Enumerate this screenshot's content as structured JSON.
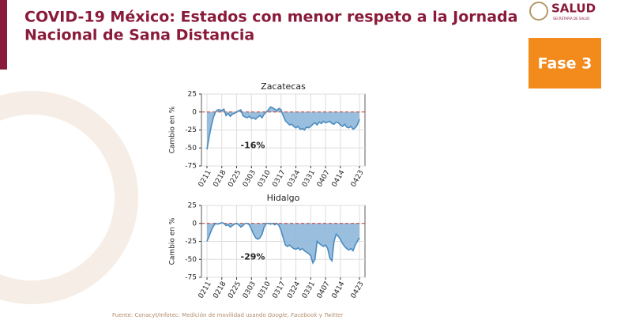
{
  "header": {
    "title_lines": [
      "COVID-19 México: Estados con menor respeto a la Jornada",
      "Nacional de Sana Distancia"
    ],
    "logo": "SALUD",
    "logo_sub": "SECRETARÍA DE SALUD",
    "badge": "Fase 3"
  },
  "footer": {
    "parts": [
      "Fuente: Conacyt/Infotec: Medición de movilidad usando ",
      "Google",
      ", ",
      "Facebook",
      " y ",
      "Twitter"
    ]
  },
  "chart_data": [
    {
      "type": "area",
      "title": "Zacatecas",
      "y_label": "Cambio en %",
      "annotation": "-16%",
      "color": "#4a8bbf",
      "fill": "#8fb8da",
      "x": [
        "0211",
        "0212",
        "0213",
        "0214",
        "0215",
        "0216",
        "0217",
        "0218",
        "0219",
        "0220",
        "0221",
        "0222",
        "0223",
        "0224",
        "0225",
        "0226",
        "0227",
        "0228",
        "0229",
        "0301",
        "0302",
        "0303",
        "0304",
        "0305",
        "0306",
        "0307",
        "0308",
        "0309",
        "0310",
        "0311",
        "0312",
        "0313",
        "0314",
        "0315",
        "0316",
        "0317",
        "0318",
        "0319",
        "0320",
        "0321",
        "0322",
        "0323",
        "0324",
        "0325",
        "0326",
        "0327",
        "0328",
        "0329",
        "0330",
        "0331",
        "0401",
        "0402",
        "0403",
        "0404",
        "0405",
        "0406",
        "0407",
        "0408",
        "0409",
        "0410",
        "0411",
        "0412",
        "0413",
        "0414",
        "0415",
        "0416",
        "0417",
        "0418",
        "0419",
        "0420",
        "0421",
        "0422",
        "0423"
      ],
      "values": [
        -52,
        -35,
        -20,
        -8,
        0,
        3,
        3,
        2,
        4,
        -5,
        -2,
        -6,
        -3,
        -2,
        0,
        2,
        3,
        -5,
        -7,
        -8,
        -6,
        -9,
        -8,
        -10,
        -7,
        -5,
        -8,
        -3,
        0,
        3,
        7,
        6,
        4,
        2,
        5,
        3,
        -5,
        -12,
        -15,
        -18,
        -17,
        -20,
        -22,
        -20,
        -24,
        -23,
        -25,
        -21,
        -22,
        -20,
        -17,
        -15,
        -18,
        -14,
        -16,
        -13,
        -15,
        -14,
        -13,
        -16,
        -17,
        -14,
        -15,
        -18,
        -20,
        -17,
        -21,
        -22,
        -20,
        -24,
        -22,
        -18,
        -10
      ],
      "xticks": [
        "0211",
        "0218",
        "0225",
        "0303",
        "0310",
        "0317",
        "0324",
        "0331",
        "0407",
        "0414",
        "0423"
      ],
      "ylim": [
        -75,
        25
      ],
      "yticks": [
        25,
        0,
        -25,
        -50,
        -75
      ],
      "grid": true
    },
    {
      "type": "area",
      "title": "Hidalgo",
      "y_label": "Cambio en %",
      "annotation": "-29%",
      "color": "#4a8bbf",
      "fill": "#8fb8da",
      "x": [
        "0211",
        "0212",
        "0213",
        "0214",
        "0215",
        "0216",
        "0217",
        "0218",
        "0219",
        "0220",
        "0221",
        "0222",
        "0223",
        "0224",
        "0225",
        "0226",
        "0227",
        "0228",
        "0229",
        "0301",
        "0302",
        "0303",
        "0304",
        "0305",
        "0306",
        "0307",
        "0308",
        "0309",
        "0310",
        "0311",
        "0312",
        "0313",
        "0314",
        "0315",
        "0316",
        "0317",
        "0318",
        "0319",
        "0320",
        "0321",
        "0322",
        "0323",
        "0324",
        "0325",
        "0326",
        "0327",
        "0328",
        "0329",
        "0330",
        "0331",
        "0401",
        "0402",
        "0403",
        "0404",
        "0405",
        "0406",
        "0407",
        "0408",
        "0409",
        "0410",
        "0411",
        "0412",
        "0413",
        "0414",
        "0415",
        "0416",
        "0417",
        "0418",
        "0419",
        "0420",
        "0421",
        "0422",
        "0423"
      ],
      "values": [
        -25,
        -18,
        -10,
        -4,
        0,
        -1,
        0,
        1,
        0,
        -3,
        -2,
        -5,
        -3,
        -1,
        0,
        -2,
        -5,
        -3,
        0,
        0,
        -2,
        -8,
        -15,
        -20,
        -22,
        -20,
        -15,
        -5,
        0,
        0,
        -1,
        0,
        -2,
        0,
        -3,
        -10,
        -20,
        -30,
        -32,
        -30,
        -33,
        -35,
        -36,
        -34,
        -37,
        -35,
        -38,
        -40,
        -42,
        -45,
        -55,
        -50,
        -25,
        -28,
        -30,
        -32,
        -30,
        -35,
        -48,
        -52,
        -25,
        -15,
        -18,
        -22,
        -28,
        -32,
        -35,
        -37,
        -35,
        -38,
        -30,
        -25,
        -20
      ],
      "xticks": [
        "0211",
        "0218",
        "0225",
        "0303",
        "0310",
        "0317",
        "0324",
        "0331",
        "0407",
        "0414",
        "0423"
      ],
      "ylim": [
        -75,
        25
      ],
      "yticks": [
        25,
        0,
        -25,
        -50,
        -75
      ],
      "grid": true
    }
  ]
}
